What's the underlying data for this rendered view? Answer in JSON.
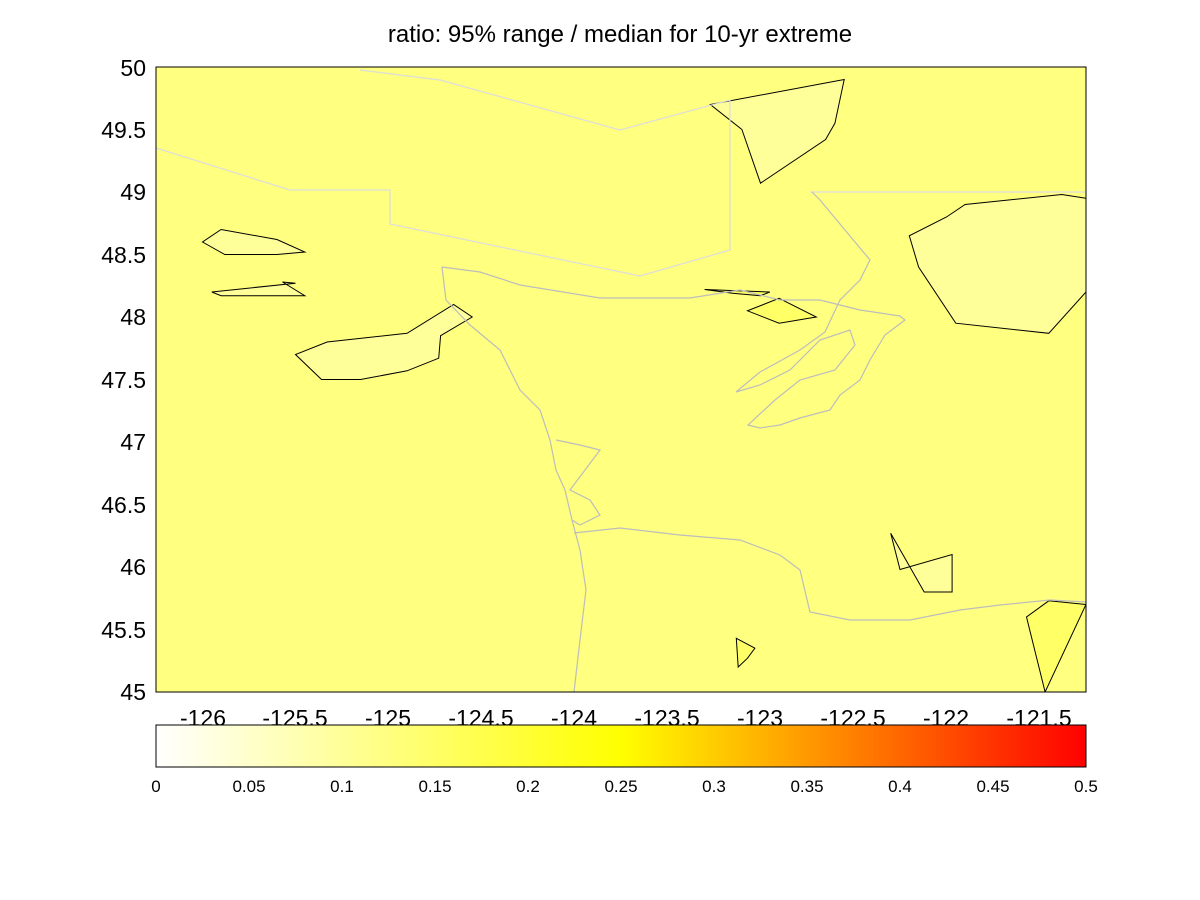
{
  "chart_data": {
    "type": "heatmap",
    "title": "ratio: 95% range / median for 10-yr extreme",
    "xlabel": "",
    "ylabel": "",
    "xlim": [
      -126.25,
      -121.25
    ],
    "ylim": [
      45,
      50
    ],
    "xticks": [
      -126,
      -125.5,
      -125,
      -124.5,
      -124,
      -123.5,
      -123,
      -122.5,
      -122,
      -121.5
    ],
    "xtick_labels": [
      "-126",
      "-125.5",
      "-125",
      "-124.5",
      "-124",
      "-123.5",
      "-123",
      "-122.5",
      "-122",
      "-121.5"
    ],
    "yticks": [
      45,
      45.5,
      46,
      46.5,
      47,
      47.5,
      48,
      48.5,
      49,
      49.5,
      50
    ],
    "ytick_labels": [
      "45",
      "45.5",
      "46",
      "46.5",
      "47",
      "47.5",
      "48",
      "48.5",
      "49",
      "49.5",
      "50"
    ],
    "background_level": 0.125,
    "colorbar": {
      "range": [
        0,
        0.5
      ],
      "ticks": [
        0,
        0.05,
        0.1,
        0.15,
        0.2,
        0.25,
        0.3,
        0.35,
        0.4,
        0.45,
        0.5
      ],
      "tick_labels": [
        "0",
        "0.05",
        "0.1",
        "0.15",
        "0.2",
        "0.25",
        "0.3",
        "0.35",
        "0.4",
        "0.45",
        "0.5"
      ],
      "colormap": "hot-reversed (white → yellow → orange → red)",
      "stops": [
        {
          "v": 0.0,
          "color": "#ffffff"
        },
        {
          "v": 0.125,
          "color": "#ffff80"
        },
        {
          "v": 0.25,
          "color": "#ffff00"
        },
        {
          "v": 0.375,
          "color": "#ff8000"
        },
        {
          "v": 0.5,
          "color": "#ff0000"
        }
      ]
    },
    "contour_regions": [
      {
        "name": "low-ne-sw",
        "level": 0.1,
        "lon": [
          -125.6,
          -125.45,
          -125.6,
          -125.88,
          -126.0,
          -125.9
        ],
        "lat": [
          48.62,
          48.52,
          48.5,
          48.5,
          48.6,
          48.7
        ]
      },
      {
        "name": "low-w-strip",
        "level": 0.1,
        "lon": [
          -125.45,
          -125.9,
          -125.95,
          -125.5,
          -125.57
        ],
        "lat": [
          48.17,
          48.17,
          48.2,
          48.27,
          48.28
        ]
      },
      {
        "name": "low-offshore-oval",
        "level": 0.1,
        "lon": [
          -125.36,
          -125.5,
          -125.33,
          -124.9,
          -124.65,
          -124.55,
          -124.72,
          -124.73,
          -124.9,
          -125.15
        ],
        "lat": [
          47.5,
          47.7,
          47.8,
          47.87,
          48.1,
          48.0,
          47.85,
          47.67,
          47.57,
          47.5
        ]
      },
      {
        "name": "low-n-island",
        "level": 0.1,
        "lon": [
          -123.0,
          -122.65,
          -122.6,
          -122.55,
          -123.27,
          -123.1
        ],
        "lat": [
          49.07,
          49.42,
          49.55,
          49.9,
          49.7,
          49.5
        ]
      },
      {
        "name": "low-ne-blob",
        "level": 0.1,
        "lon": [
          -121.38,
          -121.25,
          -121.25,
          -121.45,
          -121.95,
          -122.15,
          -122.2,
          -122.0,
          -121.9
        ],
        "lat": [
          48.98,
          48.95,
          48.2,
          47.87,
          47.95,
          48.4,
          48.65,
          48.8,
          48.9
        ]
      },
      {
        "name": "low-sw-patch",
        "level": 0.1,
        "lon": [
          -122.12,
          -121.97,
          -121.97,
          -122.25,
          -122.3
        ],
        "lat": [
          45.8,
          45.8,
          46.1,
          45.98,
          46.27
        ]
      },
      {
        "name": "high-e-strip",
        "level": 0.15,
        "lon": [
          -123.3,
          -122.95,
          -123.0,
          -123.15
        ],
        "lat": [
          48.22,
          48.2,
          48.17,
          48.19
        ]
      },
      {
        "name": "high-puget",
        "level": 0.15,
        "lon": [
          -122.9,
          -122.7,
          -122.9,
          -123.07
        ],
        "lat": [
          48.15,
          48.0,
          47.95,
          48.05
        ]
      },
      {
        "name": "high-sw-corner",
        "level": 0.15,
        "lon": [
          -121.25,
          -121.45,
          -121.57,
          -121.47
        ],
        "lat": [
          45.7,
          45.73,
          45.6,
          45
        ]
      },
      {
        "name": "high-s-spot",
        "level": 0.15,
        "lon": [
          -123.13,
          -123.03,
          -123.07,
          -123.12
        ],
        "lat": [
          45.43,
          45.35,
          45.27,
          45.2
        ]
      }
    ]
  }
}
